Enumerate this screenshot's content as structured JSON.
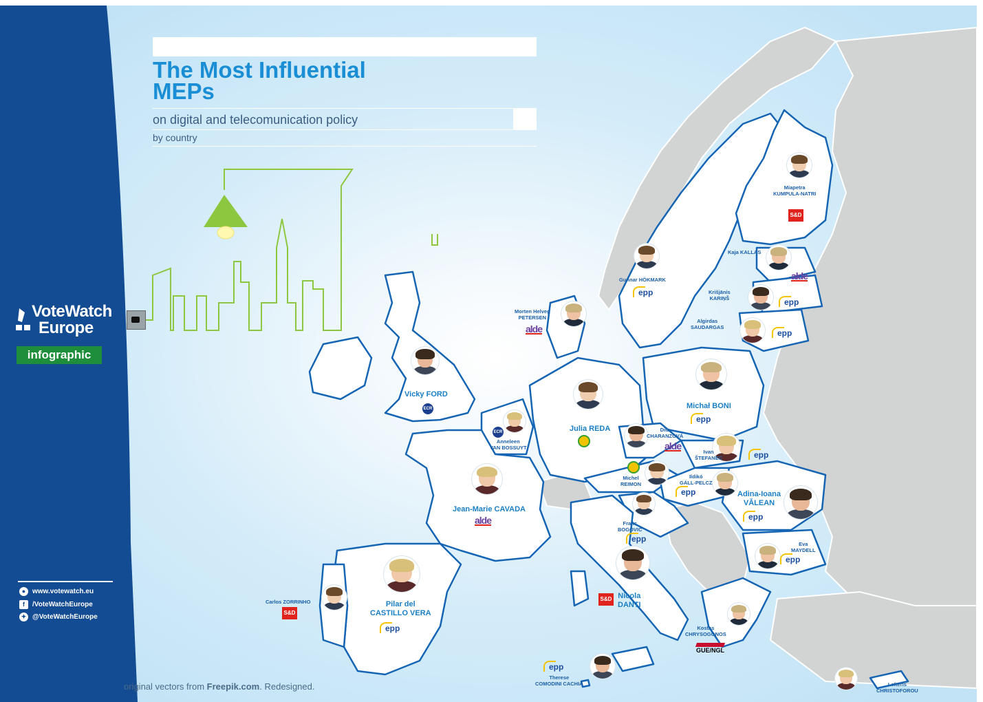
{
  "header": {
    "title_line1": "The Most Influential",
    "title_line2": "MEPs",
    "subtitle": "on digital and telecomunication policy",
    "byline": "by country"
  },
  "brand": {
    "name_line1": "VoteWatch",
    "name_line2": "Europe",
    "badge": "infographic"
  },
  "social": {
    "website": "www.votewatch.eu",
    "facebook": "/VoteWatchEurope",
    "twitter": "@VoteWatchEurope"
  },
  "credit": {
    "prefix": "original vectors from ",
    "source": "Freepik.com",
    "suffix": ". Redesigned."
  },
  "colors": {
    "sidebar": "#134c92",
    "title": "#1a8ed5",
    "sea": "#c9e7f8",
    "land_eu": "#ffffff",
    "land_non_eu": "#d2d3d3",
    "border": "#1565b4",
    "lamp": "#8dc63f",
    "badge_green": "#1f8e3a",
    "epp_blue": "#1c4fa0",
    "sd_red": "#e0231c"
  },
  "party_labels": {
    "epp": "epp",
    "sd": "S&D",
    "alde": "alde",
    "ecr": "ECR",
    "greens": "Greens",
    "gue": "GUE/NGL"
  },
  "meps": [
    {
      "key": "kumpula",
      "name": "Miapetra\nKUMPULA-NATRI",
      "party": "sd"
    },
    {
      "key": "kallas",
      "name": "Kaja KALLAS",
      "party": "alde"
    },
    {
      "key": "karins",
      "name": "Krišjānis\nKARIŅŠ",
      "party": "epp"
    },
    {
      "key": "saudargas",
      "name": "Algirdas\nSAUDARGAS",
      "party": "epp"
    },
    {
      "key": "hokmark",
      "name": "Gunnar HÖKMARK",
      "party": "epp"
    },
    {
      "key": "petersen",
      "name": "Morten Helveg\nPETERSEN",
      "party": "alde"
    },
    {
      "key": "ford",
      "name": "Vicky FORD",
      "party": "ecr"
    },
    {
      "key": "vanbossuyt",
      "name": "Anneleen\nVAN BOSSUYT",
      "party": "ecr"
    },
    {
      "key": "reda",
      "name": "Julia REDA",
      "party": "greens"
    },
    {
      "key": "boni",
      "name": "Michał BONI",
      "party": "epp"
    },
    {
      "key": "charanzova",
      "name": "Dita\nCHARANZOVÁ",
      "party": "alde"
    },
    {
      "key": "stefanec",
      "name": "Ivan\nŠTEFANEC",
      "party": "epp"
    },
    {
      "key": "reimon",
      "name": "Michel\nREIMON",
      "party": "greens"
    },
    {
      "key": "gallpelcz",
      "name": "Ildikó\nGÁLL-PELCZ",
      "party": "epp"
    },
    {
      "key": "valean",
      "name": "Adina-Ioana\nVĂLEAN",
      "party": "epp"
    },
    {
      "key": "cavada",
      "name": "Jean-Marie CAVADA",
      "party": "alde"
    },
    {
      "key": "bogovic",
      "name": "Franc\nBOGOVIČ",
      "party": "epp"
    },
    {
      "key": "maydell",
      "name": "Eva\nMAYDELL",
      "party": "epp"
    },
    {
      "key": "danti",
      "name": "Nicola\nDANTI",
      "party": "sd"
    },
    {
      "key": "delcastillo",
      "name": "Pilar del\nCASTILLO VERA",
      "party": "epp"
    },
    {
      "key": "zorrinho",
      "name": "Carlos ZORRINHO",
      "party": "sd"
    },
    {
      "key": "chrysogonos",
      "name": "Kostas\nCHRYSOGONOS",
      "party": "gue"
    },
    {
      "key": "comodini",
      "name": "Therese\nCOMODINI CACHIA",
      "party": "epp"
    },
    {
      "key": "christoforou",
      "name": "Lefteris\nCHRISTOFOROU",
      "party": "epp"
    }
  ]
}
